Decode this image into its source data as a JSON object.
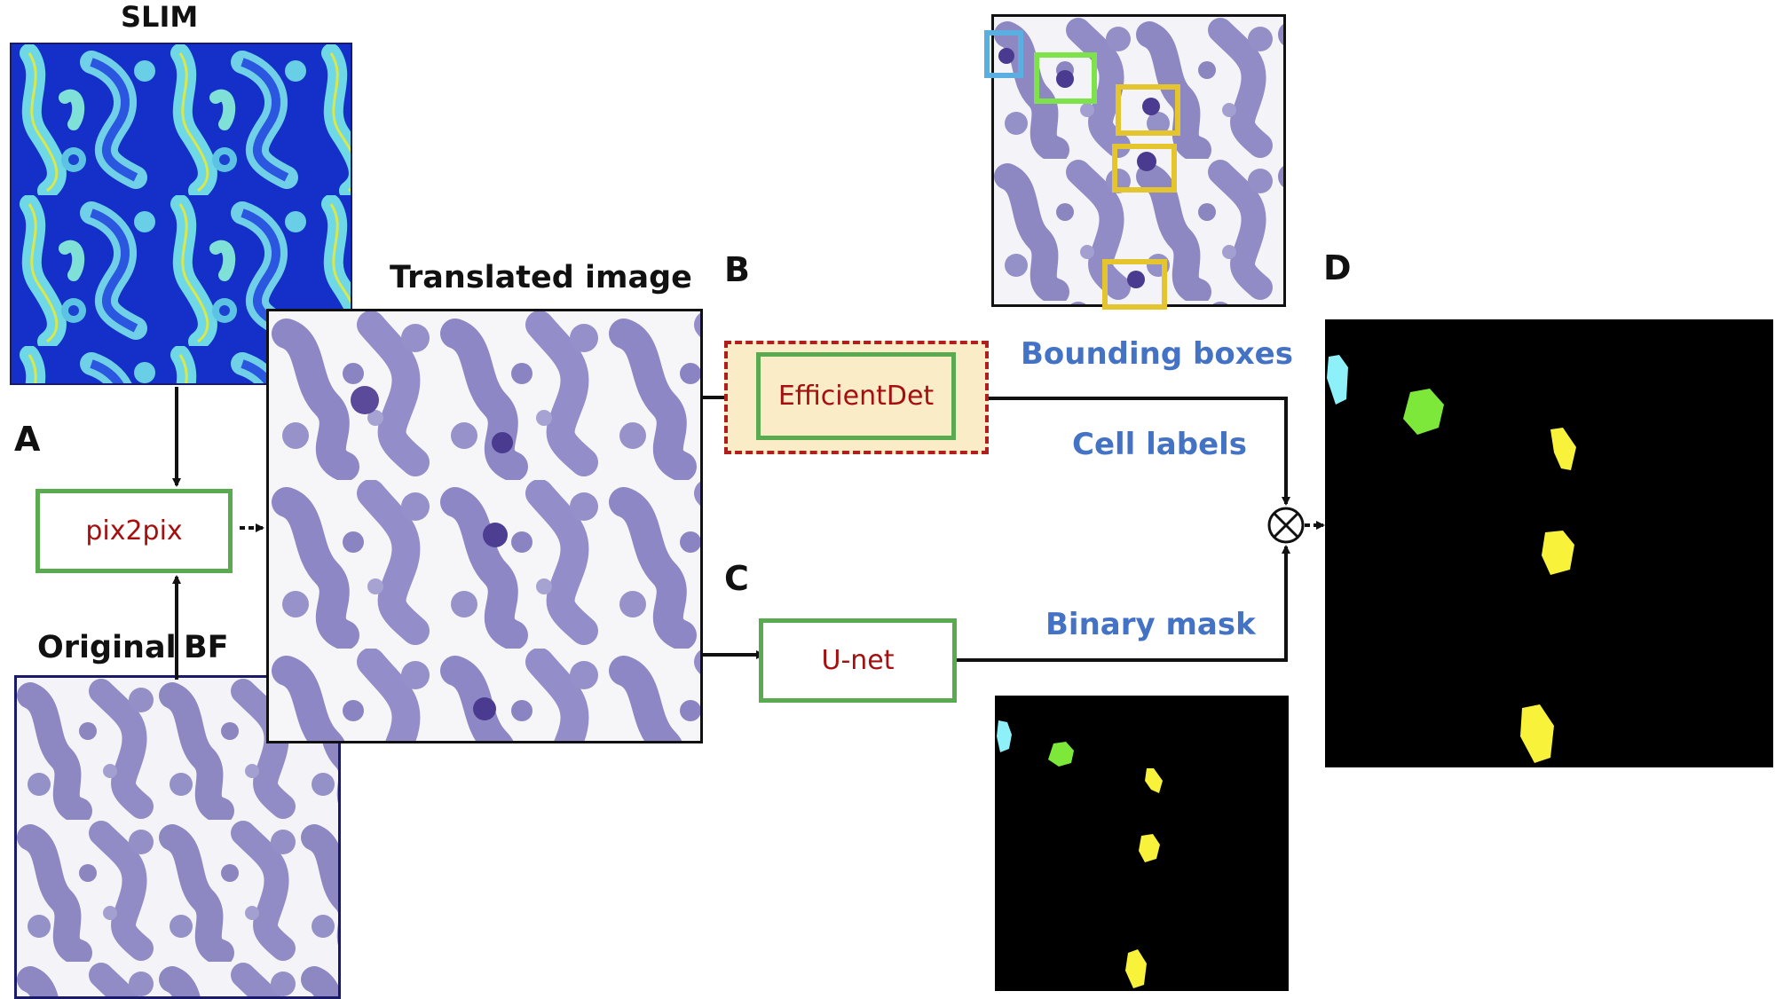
{
  "labels": {
    "slim": "SLIM",
    "translated": "Translated image",
    "original": "Original",
    "bf": "BF",
    "a": "A",
    "b": "B",
    "c": "C",
    "d": "D"
  },
  "models": {
    "pix2pix": "pix2pix",
    "efficientdet": "EfficientDet",
    "unet": "U-net"
  },
  "annotations": {
    "bounding_boxes": "Bounding boxes",
    "cell_labels": "Cell labels",
    "binary_mask": "Binary mask"
  },
  "combine_symbol": "⊗",
  "colors": {
    "model_border": "#5aaa50",
    "model_text": "#a50f0f",
    "annotation_text": "#4472c4",
    "dashed_box_border": "#b01e1e",
    "dashed_box_fill": "#f9ecc6",
    "box_cyan": "#5aaee0",
    "box_green": "#7ee24a",
    "box_yellow": "#e5c52e",
    "mask_cyan": "#8ef0f8",
    "mask_green": "#7ee83a",
    "mask_yellow": "#f8f23a"
  }
}
